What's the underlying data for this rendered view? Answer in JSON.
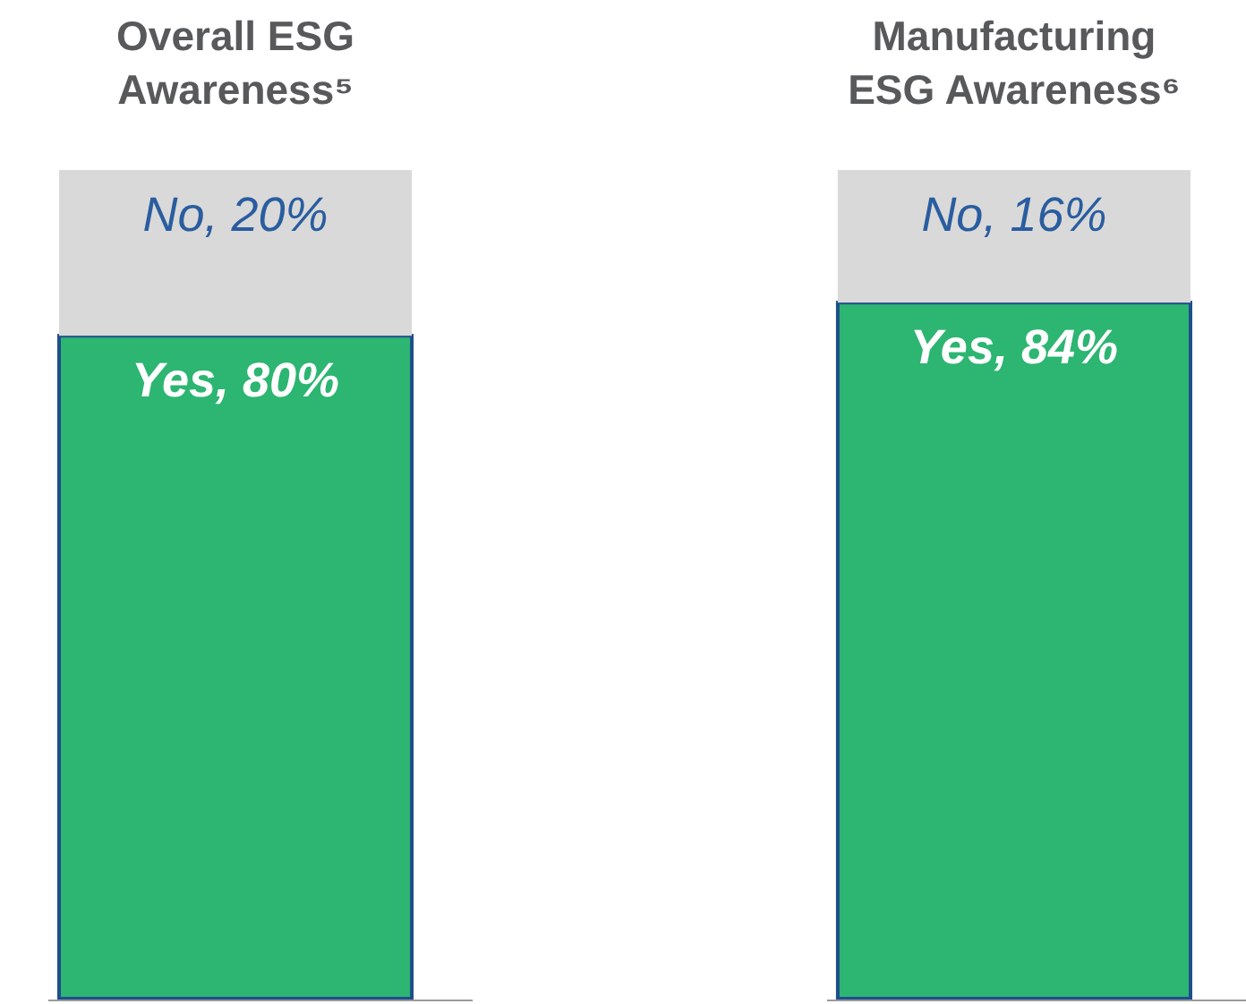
{
  "chart_data": {
    "type": "bar",
    "stacked": true,
    "categories": [
      "Overall ESG Awareness⁵",
      "Manufacturing ESG Awareness⁶"
    ],
    "series": [
      {
        "color": "#2db572",
        "values": [
          80,
          84
        ],
        "value_labels": [
          "Yes, 80%",
          "Yes, 84%"
        ]
      },
      {
        "color": "#d9d9d9",
        "values": [
          20,
          16
        ],
        "value_labels": [
          "No, 20%",
          "No, 16%"
        ]
      }
    ]
  }
}
